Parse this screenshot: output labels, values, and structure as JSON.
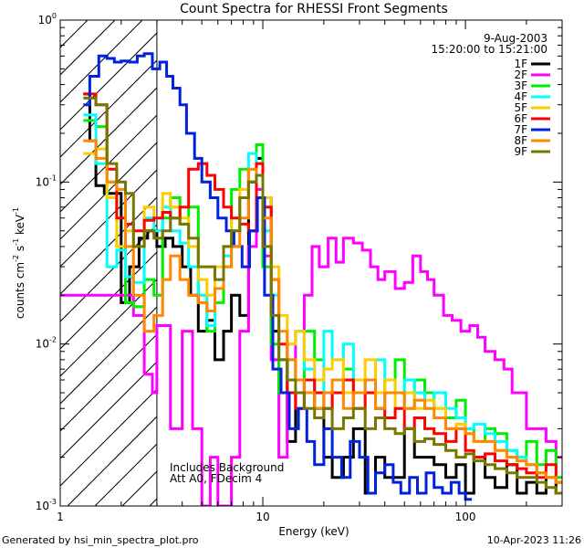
{
  "chart_data": {
    "type": "line",
    "title": "Count Spectra for RHESSI Front Segments",
    "xlabel": "Energy (keV)",
    "ylabel": "counts cm",
    "ylabel_sup1": "-2",
    "ylabel_mid": " s",
    "ylabel_sup2": "-1",
    "ylabel_end": " keV",
    "ylabel_sup3": "-1",
    "xscale": "log",
    "yscale": "log",
    "xlim": [
      1,
      300
    ],
    "ylim": [
      0.001,
      1
    ],
    "grid": false,
    "x_tick_labels": [
      {
        "value": 1,
        "label": "1"
      },
      {
        "value": 10,
        "label": "10"
      },
      {
        "value": 100,
        "label": "100"
      }
    ],
    "y_tick_labels": [
      {
        "value": 1,
        "mant": "10",
        "exp": "0"
      },
      {
        "value": 0.1,
        "mant": "10",
        "exp": "-1"
      },
      {
        "value": 0.01,
        "mant": "10",
        "exp": "-2"
      },
      {
        "value": 0.001,
        "mant": "10",
        "exp": "-3"
      }
    ],
    "hatched_region": {
      "x_from": 1,
      "x_to": 3
    },
    "legend_placement": "top-right",
    "date_text": "9-Aug-2003",
    "time_text": "15:20:00 to 15:21:00",
    "annotations": [
      "Includes Background",
      "Att A0, FDecim 4"
    ],
    "footer_left": "Generated by hsi_min_spectra_plot.pro",
    "footer_right": "10-Apr-2023 11:26",
    "series": [
      {
        "name": "1F",
        "color": "#000000",
        "width": 3,
        "x": [
          1.3,
          1.4,
          1.5,
          1.65,
          1.8,
          2.0,
          2.2,
          2.45,
          2.7,
          3.0,
          3.3,
          3.6,
          4.0,
          4.4,
          4.8,
          5.3,
          5.8,
          6.4,
          7.0,
          7.7,
          8.5,
          9.3,
          10.0,
          11.0,
          12.0,
          13.2,
          14.5,
          16,
          18,
          20,
          22,
          25,
          28,
          32,
          36,
          40,
          45,
          50,
          56,
          63,
          70,
          80,
          90,
          100,
          110,
          125,
          140,
          160,
          180,
          200,
          225,
          250,
          280
        ],
        "y": [
          0.35,
          0.18,
          0.095,
          0.085,
          0.085,
          0.018,
          0.03,
          0.045,
          0.05,
          0.04,
          0.045,
          0.04,
          0.03,
          0.02,
          0.012,
          0.014,
          0.008,
          0.012,
          0.02,
          0.015,
          0.1,
          0.14,
          0.08,
          0.012,
          0.008,
          0.0025,
          0.005,
          0.006,
          0.004,
          0.002,
          0.0015,
          0.002,
          0.003,
          0.0012,
          0.002,
          0.0015,
          0.0015,
          0.003,
          0.002,
          0.002,
          0.0018,
          0.0015,
          0.0018,
          0.0012,
          0.002,
          0.0015,
          0.0013,
          0.0018,
          0.0012,
          0.0014,
          0.0012,
          0.0015,
          0.0012
        ]
      },
      {
        "name": "2F",
        "color": "#ff00ff",
        "width": 3,
        "x": [
          1.0,
          1.3,
          1.65,
          2.0,
          2.3,
          2.6,
          2.85,
          3.0,
          3.5,
          4.0,
          4.5,
          5.0,
          5.5,
          6.0,
          6.5,
          7.0,
          7.7,
          8.5,
          9.3,
          10.0,
          11.0,
          12.0,
          13.2,
          14.5,
          16,
          17.5,
          19,
          21,
          23,
          25,
          28,
          31,
          34,
          37,
          40,
          45,
          50,
          55,
          60,
          65,
          70,
          78,
          86,
          95,
          105,
          115,
          125,
          140,
          155,
          170,
          185,
          200,
          225,
          250,
          280,
          300
        ],
        "y": [
          0.02,
          0.02,
          0.02,
          0.02,
          0.015,
          0.0065,
          0.005,
          0.013,
          0.003,
          0.012,
          0.003,
          0.001,
          0.002,
          0.001,
          0.001,
          0.002,
          0.012,
          0.04,
          0.09,
          0.035,
          0.008,
          0.002,
          0.006,
          0.012,
          0.02,
          0.04,
          0.03,
          0.045,
          0.032,
          0.045,
          0.042,
          0.038,
          0.03,
          0.025,
          0.028,
          0.022,
          0.024,
          0.035,
          0.028,
          0.025,
          0.02,
          0.015,
          0.014,
          0.012,
          0.013,
          0.011,
          0.009,
          0.008,
          0.007,
          0.005,
          0.005,
          0.003,
          0.003,
          0.0025,
          0.002,
          0.002
        ]
      },
      {
        "name": "3F",
        "color": "#00ee00",
        "width": 3,
        "x": [
          1.3,
          1.5,
          1.7,
          1.9,
          2.1,
          2.3,
          2.6,
          2.9,
          3.2,
          3.5,
          3.9,
          4.3,
          4.8,
          5.3,
          5.8,
          6.4,
          7.0,
          7.7,
          8.5,
          9.3,
          10.0,
          11.0,
          12.0,
          13.2,
          14.5,
          16,
          18,
          20,
          22,
          25,
          28,
          32,
          36,
          40,
          45,
          50,
          56,
          63,
          70,
          80,
          90,
          100,
          110,
          125,
          140,
          160,
          180,
          200,
          225,
          250,
          280
        ],
        "y": [
          0.24,
          0.22,
          0.1,
          0.04,
          0.018,
          0.017,
          0.025,
          0.02,
          0.06,
          0.08,
          0.055,
          0.07,
          0.02,
          0.012,
          0.018,
          0.03,
          0.09,
          0.12,
          0.1,
          0.17,
          0.03,
          0.01,
          0.005,
          0.008,
          0.006,
          0.012,
          0.008,
          0.004,
          0.005,
          0.007,
          0.005,
          0.006,
          0.004,
          0.006,
          0.008,
          0.004,
          0.006,
          0.005,
          0.004,
          0.0035,
          0.0045,
          0.003,
          0.0025,
          0.003,
          0.0028,
          0.0022,
          0.002,
          0.0025,
          0.0018,
          0.0022,
          0.0015
        ]
      },
      {
        "name": "4F",
        "color": "#00ffff",
        "width": 3,
        "x": [
          1.3,
          1.5,
          1.7,
          1.9,
          2.1,
          2.3,
          2.6,
          2.9,
          3.2,
          3.5,
          3.9,
          4.3,
          4.8,
          5.3,
          5.8,
          6.4,
          7.0,
          7.7,
          8.5,
          9.3,
          10.0,
          11.0,
          12.0,
          13.2,
          14.5,
          16,
          18,
          20,
          22,
          25,
          28,
          32,
          36,
          40,
          45,
          50,
          56,
          63,
          70,
          80,
          90,
          100,
          110,
          125,
          140,
          160,
          180,
          200,
          225,
          250,
          280
        ],
        "y": [
          0.26,
          0.13,
          0.03,
          0.038,
          0.026,
          0.024,
          0.06,
          0.05,
          0.07,
          0.05,
          0.042,
          0.03,
          0.02,
          0.013,
          0.025,
          0.035,
          0.05,
          0.08,
          0.15,
          0.13,
          0.05,
          0.02,
          0.008,
          0.01,
          0.012,
          0.007,
          0.005,
          0.012,
          0.008,
          0.01,
          0.006,
          0.005,
          0.008,
          0.006,
          0.005,
          0.006,
          0.005,
          0.004,
          0.005,
          0.004,
          0.0035,
          0.003,
          0.0032,
          0.0028,
          0.0025,
          0.0022,
          0.002,
          0.0018,
          0.0016,
          0.0015,
          0.0014
        ]
      },
      {
        "name": "5F",
        "color": "#ffcc00",
        "width": 3,
        "x": [
          1.3,
          1.5,
          1.7,
          1.9,
          2.1,
          2.3,
          2.6,
          2.9,
          3.2,
          3.5,
          3.9,
          4.3,
          4.8,
          5.3,
          5.8,
          6.4,
          7.0,
          7.7,
          8.5,
          9.3,
          10.0,
          11.0,
          12.0,
          13.2,
          14.5,
          16,
          18,
          20,
          22,
          25,
          28,
          32,
          36,
          40,
          45,
          50,
          56,
          63,
          70,
          80,
          90,
          100,
          110,
          125,
          140,
          160,
          180,
          200,
          225,
          250,
          280
        ],
        "y": [
          0.15,
          0.16,
          0.08,
          0.04,
          0.05,
          0.04,
          0.07,
          0.06,
          0.085,
          0.07,
          0.06,
          0.04,
          0.025,
          0.02,
          0.03,
          0.04,
          0.06,
          0.09,
          0.12,
          0.13,
          0.08,
          0.03,
          0.015,
          0.01,
          0.012,
          0.008,
          0.006,
          0.007,
          0.008,
          0.005,
          0.006,
          0.008,
          0.005,
          0.006,
          0.004,
          0.005,
          0.004,
          0.0045,
          0.004,
          0.003,
          0.0032,
          0.0028,
          0.0025,
          0.0025,
          0.0022,
          0.002,
          0.0019,
          0.0018,
          0.0016,
          0.0015,
          0.0014
        ]
      },
      {
        "name": "6F",
        "color": "#ff0000",
        "width": 3,
        "x": [
          1.3,
          1.5,
          1.7,
          1.9,
          2.1,
          2.3,
          2.6,
          2.9,
          3.2,
          3.5,
          3.9,
          4.3,
          4.8,
          5.3,
          5.8,
          6.4,
          7.0,
          7.7,
          8.5,
          9.3,
          10.0,
          11.0,
          12.0,
          13.2,
          14.5,
          16,
          18,
          20,
          22,
          25,
          28,
          32,
          36,
          40,
          45,
          50,
          56,
          63,
          70,
          80,
          90,
          100,
          110,
          125,
          140,
          160,
          180,
          200,
          225,
          250,
          280
        ],
        "y": [
          0.35,
          0.3,
          0.12,
          0.06,
          0.055,
          0.05,
          0.058,
          0.06,
          0.065,
          0.06,
          0.07,
          0.12,
          0.13,
          0.11,
          0.09,
          0.07,
          0.06,
          0.055,
          0.05,
          0.13,
          0.07,
          0.025,
          0.01,
          0.005,
          0.004,
          0.006,
          0.005,
          0.004,
          0.005,
          0.006,
          0.004,
          0.005,
          0.004,
          0.0035,
          0.004,
          0.003,
          0.0035,
          0.003,
          0.0028,
          0.0025,
          0.003,
          0.0022,
          0.002,
          0.0021,
          0.0019,
          0.0018,
          0.0017,
          0.0016,
          0.0015,
          0.0018,
          0.0014
        ]
      },
      {
        "name": "7F",
        "color": "#0022dd",
        "width": 3,
        "x": [
          1.3,
          1.4,
          1.55,
          1.7,
          1.85,
          2.0,
          2.2,
          2.4,
          2.6,
          2.85,
          3.1,
          3.35,
          3.6,
          3.9,
          4.2,
          4.6,
          5.0,
          5.5,
          6.0,
          6.6,
          7.2,
          7.9,
          8.6,
          9.4,
          10.2,
          11.2,
          12.3,
          13.5,
          15,
          16.5,
          18,
          20,
          22,
          24.5,
          27,
          30,
          33,
          36,
          40,
          44,
          48,
          53,
          58,
          64,
          70,
          77,
          85,
          93,
          100
        ],
        "y": [
          0.3,
          0.45,
          0.6,
          0.58,
          0.55,
          0.56,
          0.55,
          0.6,
          0.62,
          0.5,
          0.55,
          0.45,
          0.38,
          0.3,
          0.2,
          0.14,
          0.1,
          0.08,
          0.06,
          0.05,
          0.04,
          0.03,
          0.05,
          0.08,
          0.02,
          0.007,
          0.005,
          0.003,
          0.004,
          0.0025,
          0.0018,
          0.003,
          0.002,
          0.0015,
          0.0025,
          0.002,
          0.0012,
          0.0016,
          0.0018,
          0.0014,
          0.0012,
          0.0015,
          0.0012,
          0.0016,
          0.0013,
          0.0012,
          0.0014,
          0.0012,
          0.0011
        ]
      },
      {
        "name": "8F",
        "color": "#ff8800",
        "width": 3,
        "x": [
          1.3,
          1.5,
          1.7,
          1.9,
          2.1,
          2.3,
          2.6,
          2.9,
          3.2,
          3.5,
          3.9,
          4.3,
          4.8,
          5.3,
          5.8,
          6.4,
          7.0,
          7.7,
          8.5,
          9.3,
          10.0,
          11.0,
          12.0,
          13.2,
          14.5,
          16,
          18,
          20,
          22,
          25,
          28,
          32,
          36,
          40,
          45,
          50,
          56,
          63,
          70,
          80,
          90,
          100,
          110,
          125,
          140,
          160,
          180,
          200,
          225,
          250,
          280
        ],
        "y": [
          0.18,
          0.14,
          0.1,
          0.09,
          0.04,
          0.02,
          0.012,
          0.015,
          0.025,
          0.035,
          0.025,
          0.02,
          0.018,
          0.016,
          0.022,
          0.03,
          0.04,
          0.06,
          0.12,
          0.11,
          0.06,
          0.025,
          0.012,
          0.008,
          0.006,
          0.005,
          0.004,
          0.005,
          0.006,
          0.004,
          0.005,
          0.006,
          0.004,
          0.005,
          0.005,
          0.004,
          0.0045,
          0.004,
          0.0035,
          0.003,
          0.003,
          0.0028,
          0.0025,
          0.0025,
          0.0022,
          0.002,
          0.0019,
          0.0018,
          0.0016,
          0.0015,
          0.0014
        ]
      },
      {
        "name": "9F",
        "color": "#777700",
        "width": 3,
        "x": [
          1.3,
          1.5,
          1.7,
          1.9,
          2.1,
          2.3,
          2.6,
          2.9,
          3.2,
          3.5,
          3.9,
          4.3,
          4.8,
          5.3,
          5.8,
          6.4,
          7.0,
          7.7,
          8.5,
          9.3,
          10.0,
          11.0,
          12.0,
          13.2,
          14.5,
          16,
          18,
          20,
          22,
          25,
          28,
          32,
          36,
          40,
          45,
          50,
          56,
          63,
          70,
          80,
          90,
          100,
          110,
          125,
          140,
          160,
          180,
          200,
          225,
          250,
          280
        ],
        "y": [
          0.33,
          0.3,
          0.13,
          0.1,
          0.085,
          0.04,
          0.05,
          0.045,
          0.05,
          0.06,
          0.055,
          0.045,
          0.03,
          0.03,
          0.025,
          0.04,
          0.05,
          0.08,
          0.1,
          0.11,
          0.04,
          0.015,
          0.008,
          0.006,
          0.005,
          0.004,
          0.0035,
          0.004,
          0.003,
          0.0035,
          0.004,
          0.003,
          0.0035,
          0.003,
          0.0028,
          0.003,
          0.0025,
          0.0026,
          0.0024,
          0.0022,
          0.002,
          0.0021,
          0.0019,
          0.0018,
          0.0017,
          0.0016,
          0.0015,
          0.0015,
          0.0014,
          0.0013,
          0.0012
        ]
      }
    ]
  }
}
